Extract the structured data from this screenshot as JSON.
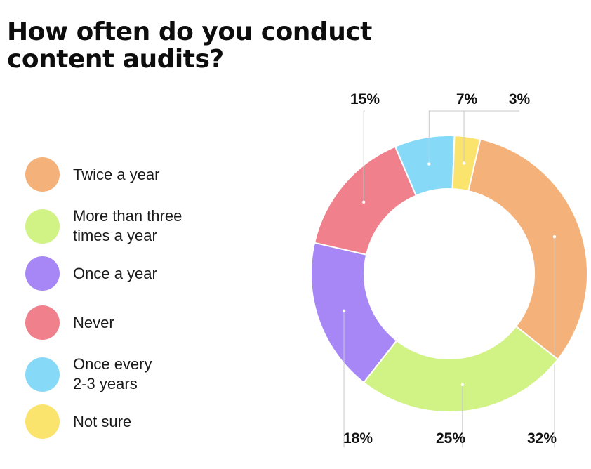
{
  "title": "How often do you conduct content audits?",
  "chart_data": {
    "type": "donut",
    "title": "How often do you conduct content audits?",
    "slices": [
      {
        "label": "Twice a year",
        "value": 32,
        "display": "32%",
        "color": "#f4b27a"
      },
      {
        "label": "More than three\ntimes a year",
        "value": 25,
        "display": "25%",
        "color": "#d1f285"
      },
      {
        "label": "Once a year",
        "value": 18,
        "display": "18%",
        "color": "#a787f5"
      },
      {
        "label": "Never",
        "value": 15,
        "display": "15%",
        "color": "#f0818c"
      },
      {
        "label": "Once every\n2-3 years",
        "value": 7,
        "display": "7%",
        "color": "#86daf7"
      },
      {
        "label": "Not sure",
        "value": 3,
        "display": "3%",
        "color": "#fbe46e"
      }
    ],
    "legend_position": "left",
    "start": "top, clockwise (Not sure ends at top)"
  }
}
